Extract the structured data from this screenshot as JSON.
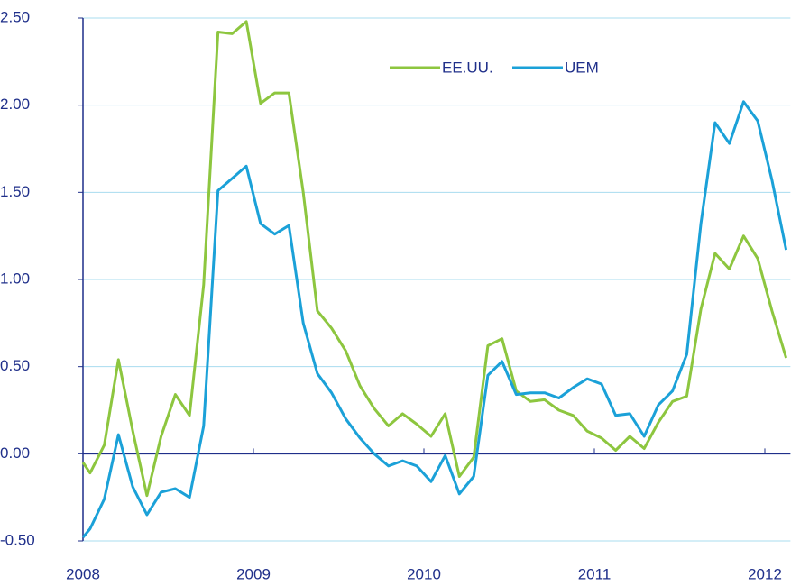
{
  "chart_data": {
    "type": "line",
    "x": [
      2008.0,
      2008.042,
      2008.125,
      2008.208,
      2008.292,
      2008.375,
      2008.458,
      2008.542,
      2008.625,
      2008.708,
      2008.792,
      2008.875,
      2008.958,
      2009.042,
      2009.125,
      2009.208,
      2009.292,
      2009.375,
      2009.458,
      2009.542,
      2009.625,
      2009.708,
      2009.792,
      2009.875,
      2009.958,
      2010.042,
      2010.125,
      2010.208,
      2010.292,
      2010.375,
      2010.458,
      2010.542,
      2010.625,
      2010.708,
      2010.792,
      2010.875,
      2010.958,
      2011.042,
      2011.125,
      2011.208,
      2011.292,
      2011.375,
      2011.458,
      2011.542,
      2011.625,
      2011.708,
      2011.792,
      2011.875,
      2011.958,
      2012.042,
      2012.125
    ],
    "series": [
      {
        "name": "EE.UU.",
        "color": "#8dc63f",
        "values": [
          -0.05,
          -0.11,
          0.05,
          0.54,
          0.13,
          -0.24,
          0.1,
          0.34,
          0.22,
          0.97,
          2.42,
          2.41,
          2.48,
          2.01,
          2.07,
          2.07,
          1.5,
          0.82,
          0.72,
          0.59,
          0.39,
          0.26,
          0.16,
          0.23,
          0.17,
          0.1,
          0.23,
          -0.13,
          -0.02,
          0.62,
          0.66,
          0.36,
          0.3,
          0.31,
          0.25,
          0.22,
          0.13,
          0.09,
          0.02,
          0.1,
          0.03,
          0.18,
          0.3,
          0.33,
          0.83,
          1.15,
          1.06,
          1.25,
          1.12,
          0.82,
          0.55
        ]
      },
      {
        "name": "UEM",
        "color": "#1ba1d8",
        "values": [
          -0.48,
          -0.43,
          -0.26,
          0.11,
          -0.19,
          -0.35,
          -0.22,
          -0.2,
          -0.25,
          0.16,
          1.51,
          1.58,
          1.65,
          1.32,
          1.26,
          1.31,
          0.75,
          0.46,
          0.35,
          0.2,
          0.09,
          0.0,
          -0.07,
          -0.04,
          -0.07,
          -0.16,
          -0.01,
          -0.23,
          -0.13,
          0.45,
          0.53,
          0.34,
          0.35,
          0.35,
          0.32,
          0.38,
          0.43,
          0.4,
          0.22,
          0.23,
          0.1,
          0.28,
          0.36,
          0.57,
          1.32,
          1.9,
          1.78,
          2.02,
          1.91,
          1.57,
          1.17
        ]
      }
    ],
    "xlim": [
      2008,
      2012.15
    ],
    "xticks": [
      2008,
      2009,
      2010,
      2011,
      2012
    ],
    "ylim": [
      -0.5,
      2.5
    ],
    "yticks": [
      {
        "value": -0.5,
        "label": "-0.50"
      },
      {
        "value": 0,
        "label": "0.00"
      },
      {
        "value": 0.5,
        "label": "0.50"
      },
      {
        "value": 1,
        "label": "1.00"
      },
      {
        "value": 1.5,
        "label": "1.50"
      },
      {
        "value": 2,
        "label": "2.00"
      },
      {
        "value": 2.5,
        "label": "2.50"
      }
    ],
    "grid": true
  }
}
